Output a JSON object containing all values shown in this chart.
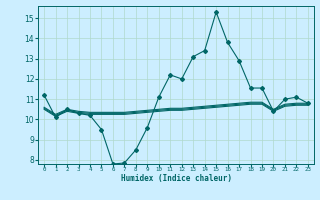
{
  "xlabel": "Humidex (Indice chaleur)",
  "background_color": "#cceeff",
  "grid_color": "#b0d9cc",
  "line_color": "#006666",
  "xlim": [
    -0.5,
    23.5
  ],
  "ylim": [
    7.8,
    15.6
  ],
  "yticks": [
    8,
    9,
    10,
    11,
    12,
    13,
    14,
    15
  ],
  "xticks": [
    0,
    1,
    2,
    3,
    4,
    5,
    6,
    7,
    8,
    9,
    10,
    11,
    12,
    13,
    14,
    15,
    16,
    17,
    18,
    19,
    20,
    21,
    22,
    23
  ],
  "main_line_x": [
    0,
    1,
    2,
    3,
    4,
    5,
    6,
    7,
    8,
    9,
    10,
    11,
    12,
    13,
    14,
    15,
    16,
    17,
    18,
    19,
    20,
    21,
    22,
    23
  ],
  "main_line_y": [
    11.2,
    10.1,
    10.5,
    10.3,
    10.2,
    9.5,
    7.8,
    7.85,
    8.5,
    9.6,
    11.1,
    12.2,
    12.0,
    13.1,
    13.4,
    15.3,
    13.8,
    12.9,
    11.55,
    11.55,
    10.4,
    11.0,
    11.1,
    10.8
  ],
  "flat_line1_x": [
    0,
    1,
    2,
    3,
    4,
    5,
    6,
    7,
    8,
    9,
    10,
    11,
    12,
    13,
    14,
    15,
    16,
    17,
    18,
    19,
    20,
    21,
    22,
    23
  ],
  "flat_line1_y": [
    10.55,
    10.2,
    10.45,
    10.35,
    10.3,
    10.3,
    10.3,
    10.3,
    10.35,
    10.4,
    10.45,
    10.5,
    10.5,
    10.55,
    10.6,
    10.65,
    10.7,
    10.75,
    10.8,
    10.8,
    10.45,
    10.7,
    10.75,
    10.75
  ],
  "flat_line2_x": [
    0,
    1,
    2,
    3,
    4,
    5,
    6,
    7,
    8,
    9,
    10,
    11,
    12,
    13,
    14,
    15,
    16,
    17,
    18,
    19,
    20,
    21,
    22,
    23
  ],
  "flat_line2_y": [
    10.6,
    10.25,
    10.5,
    10.4,
    10.35,
    10.35,
    10.35,
    10.35,
    10.4,
    10.45,
    10.5,
    10.55,
    10.55,
    10.6,
    10.65,
    10.7,
    10.75,
    10.8,
    10.85,
    10.85,
    10.5,
    10.75,
    10.8,
    10.8
  ],
  "flat_line3_x": [
    0,
    1,
    2,
    3,
    4,
    5,
    6,
    7,
    8,
    9,
    10,
    11,
    12,
    13,
    14,
    15,
    16,
    17,
    18,
    19,
    20,
    21,
    22,
    23
  ],
  "flat_line3_y": [
    10.5,
    10.15,
    10.4,
    10.3,
    10.25,
    10.25,
    10.25,
    10.25,
    10.3,
    10.35,
    10.4,
    10.45,
    10.45,
    10.5,
    10.55,
    10.6,
    10.65,
    10.7,
    10.75,
    10.75,
    10.4,
    10.65,
    10.7,
    10.7
  ]
}
